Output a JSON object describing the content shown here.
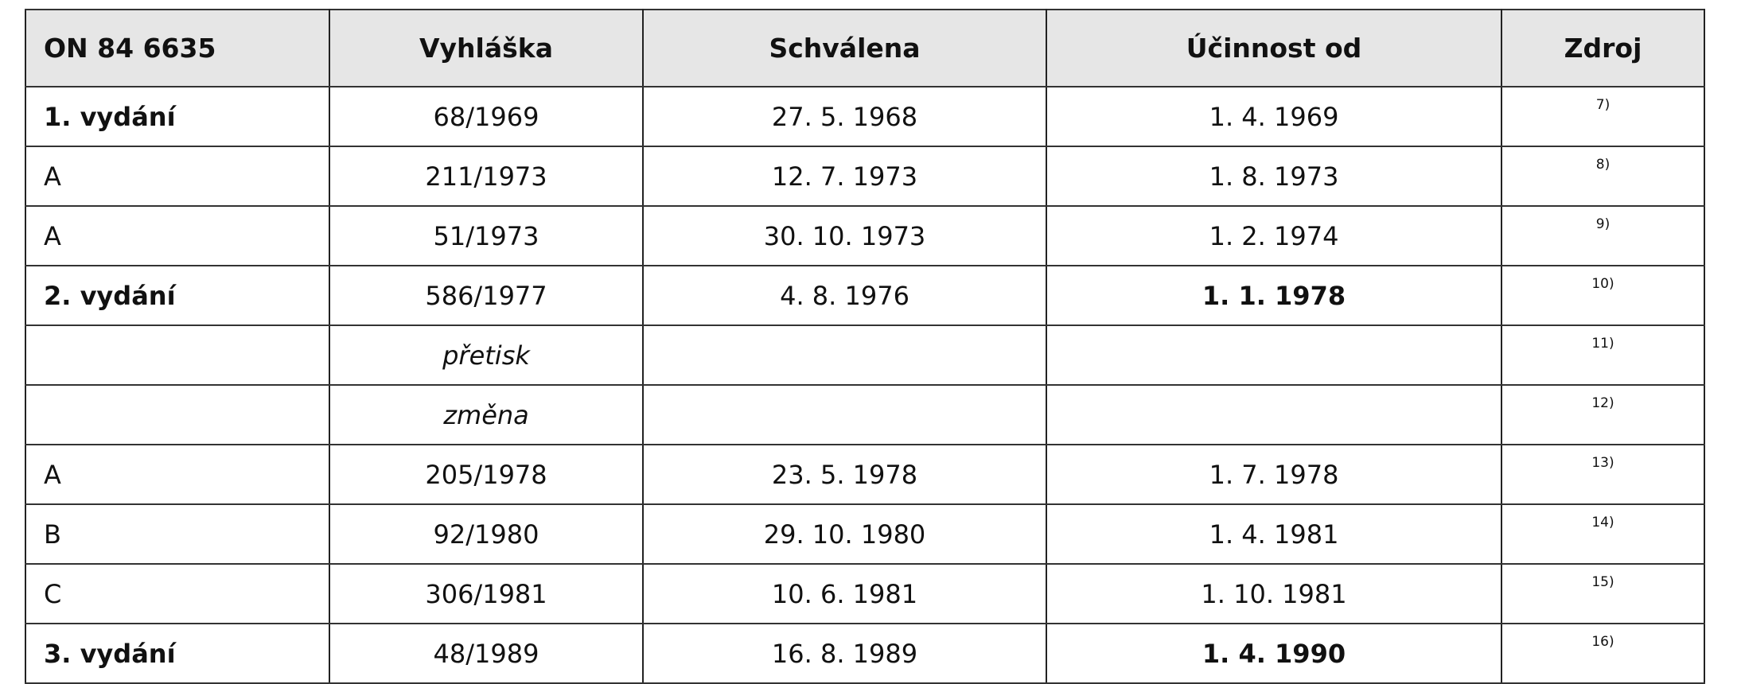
{
  "table": {
    "header": [
      "ON 84 6635",
      "Vyhláška",
      "Schválena",
      "Účinnost od",
      "Zdroj"
    ],
    "rows": [
      [
        "1. vydání",
        "68/1969",
        "27. 5. 1968",
        "1. 4. 1969",
        "7)"
      ],
      [
        "A",
        "211/1973",
        "12. 7. 1973",
        "1. 8. 1973",
        "8)"
      ],
      [
        "A",
        "51/1973",
        "30. 10. 1973",
        "1. 2. 1974",
        "9)"
      ],
      [
        "2. vydání",
        "586/1977",
        "4. 8. 1976",
        "1. 1. 1978",
        "10)"
      ],
      [
        null,
        "přetisk",
        null,
        null,
        "11)"
      ],
      [
        null,
        "změna",
        null,
        null,
        "12)"
      ],
      [
        "A",
        "205/1978",
        "23. 5. 1978",
        "1. 7. 1978",
        "13)"
      ],
      [
        "B",
        "92/1980",
        "29. 10. 1980",
        "1. 4. 1981",
        "14)"
      ],
      [
        "C",
        "306/1981",
        "10. 6. 1981",
        "1. 10. 1981",
        "15)"
      ],
      [
        "3. vydání",
        "48/1989",
        "16. 8. 1989",
        "1. 4. 1990",
        "16)"
      ]
    ]
  }
}
